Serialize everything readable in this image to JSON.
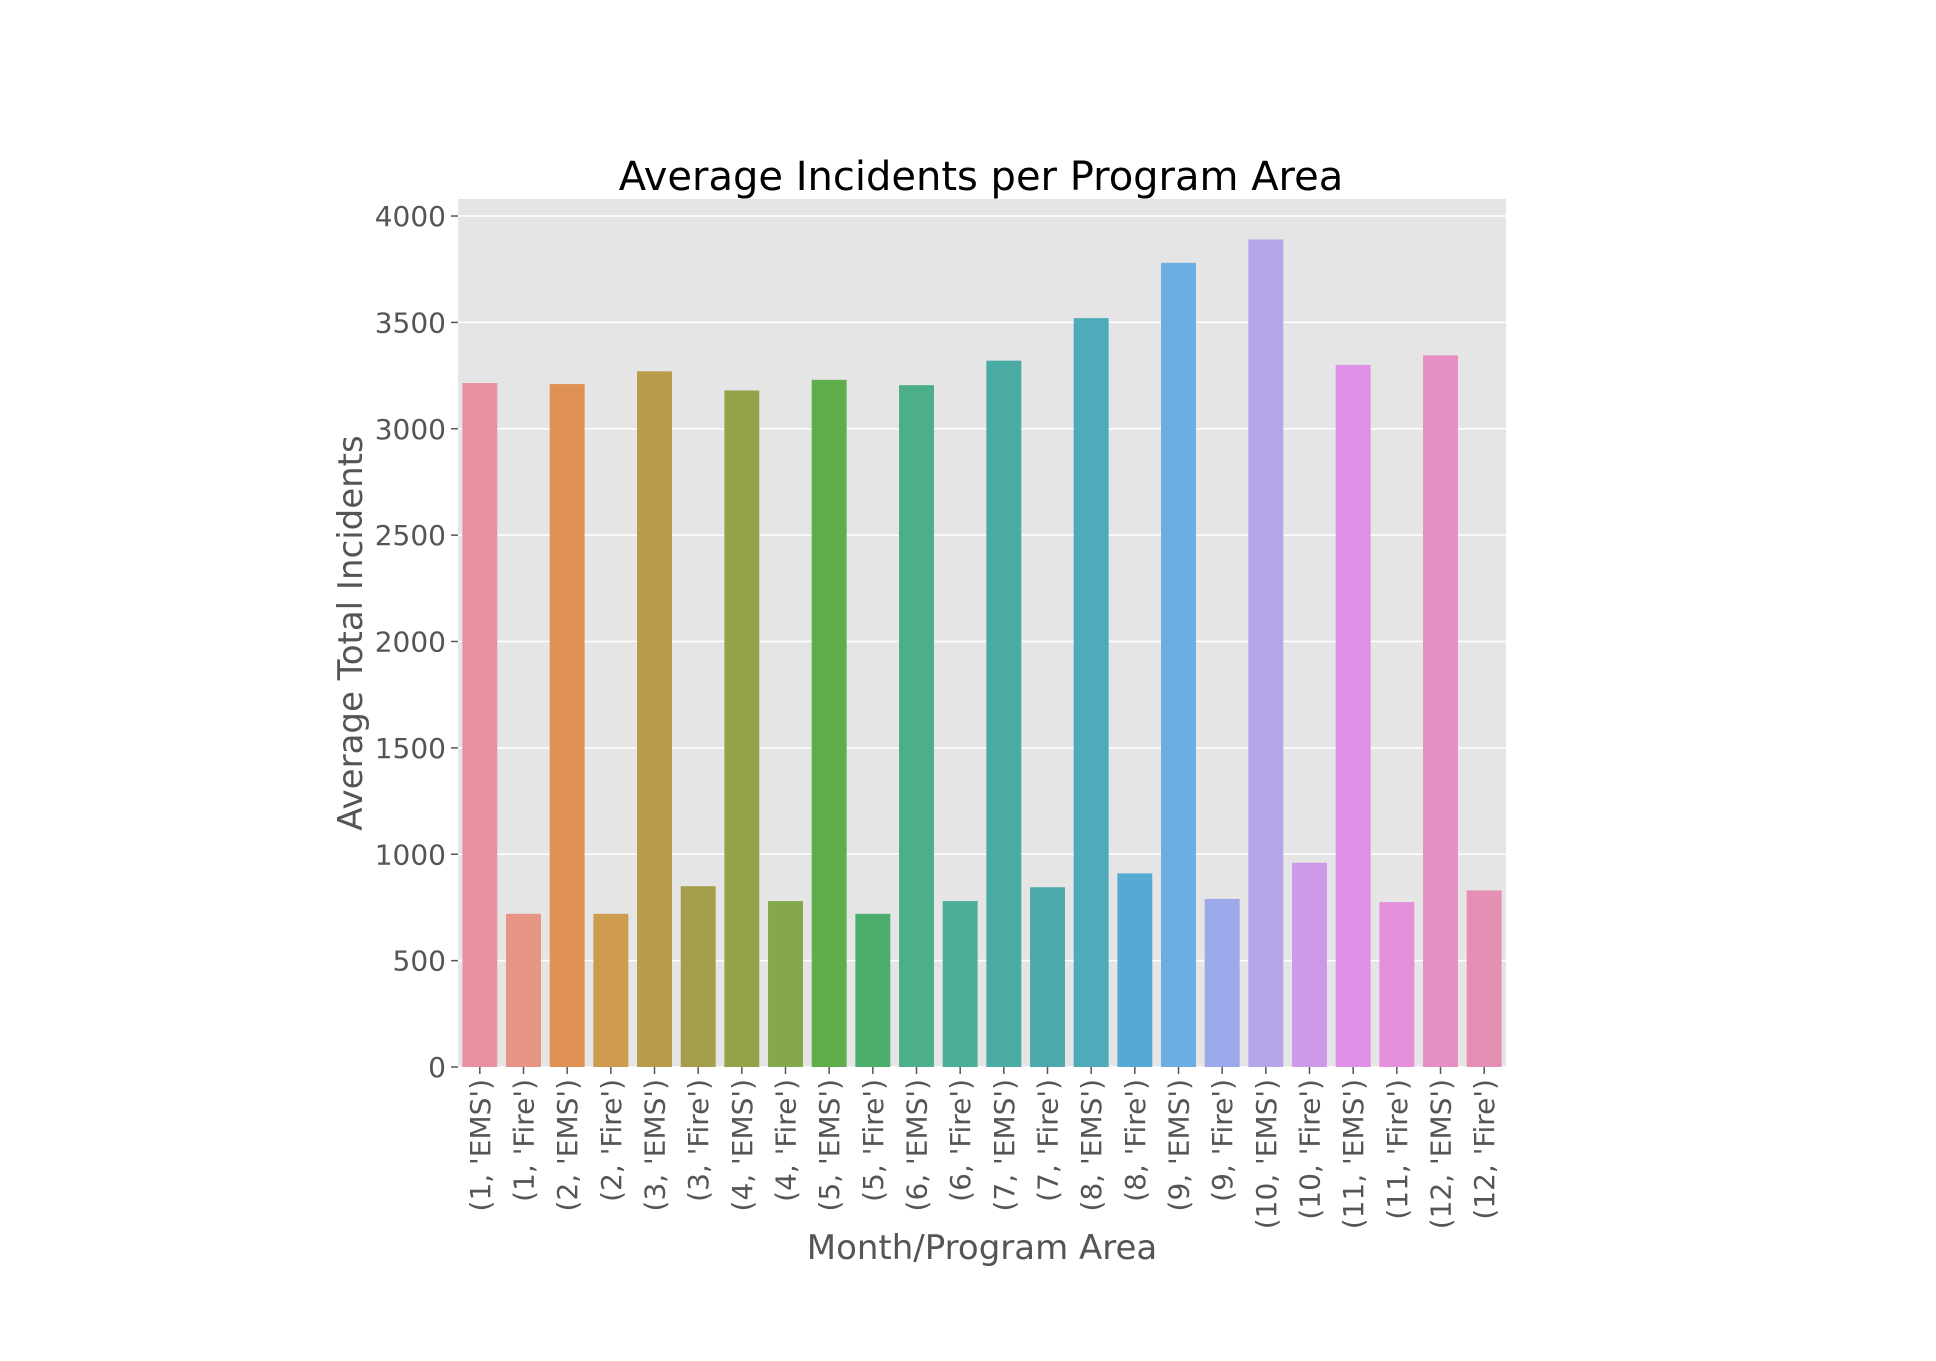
{
  "chart_data": {
    "type": "bar",
    "title": "Average Incidents per Program Area",
    "xlabel": "Month/Program Area",
    "ylabel": "Average Total Incidents",
    "ylim": [
      0,
      4080
    ],
    "yticks": [
      0,
      500,
      1000,
      1500,
      2000,
      2500,
      3000,
      3500,
      4000
    ],
    "grid": true,
    "legend": "none",
    "categories": [
      "(1, 'EMS')",
      "(1, 'Fire')",
      "(2, 'EMS')",
      "(2, 'Fire')",
      "(3, 'EMS')",
      "(3, 'Fire')",
      "(4, 'EMS')",
      "(4, 'Fire')",
      "(5, 'EMS')",
      "(5, 'Fire')",
      "(6, 'EMS')",
      "(6, 'Fire')",
      "(7, 'EMS')",
      "(7, 'Fire')",
      "(8, 'EMS')",
      "(8, 'Fire')",
      "(9, 'EMS')",
      "(9, 'Fire')",
      "(10, 'EMS')",
      "(10, 'Fire')",
      "(11, 'EMS')",
      "(11, 'Fire')",
      "(12, 'EMS')",
      "(12, 'Fire')"
    ],
    "values": [
      3215,
      720,
      3210,
      720,
      3270,
      850,
      3180,
      780,
      3230,
      720,
      3205,
      780,
      3320,
      845,
      3520,
      910,
      3780,
      790,
      3890,
      960,
      3300,
      775,
      3345,
      830
    ],
    "colors": [
      "#e8929f",
      "#e69484",
      "#e09155",
      "#cd9a4e",
      "#b89c4b",
      "#a59e4d",
      "#96a24a",
      "#84a84b",
      "#5fad4c",
      "#4cad6c",
      "#4caf8a",
      "#4bae96",
      "#4aaba3",
      "#4ba9ac",
      "#4faab9",
      "#55aad4",
      "#6cade2",
      "#9ba8e9",
      "#b7a5ea",
      "#cf99ea",
      "#dd90e6",
      "#e38fd9",
      "#e68fc6",
      "#e68fb4"
    ]
  }
}
